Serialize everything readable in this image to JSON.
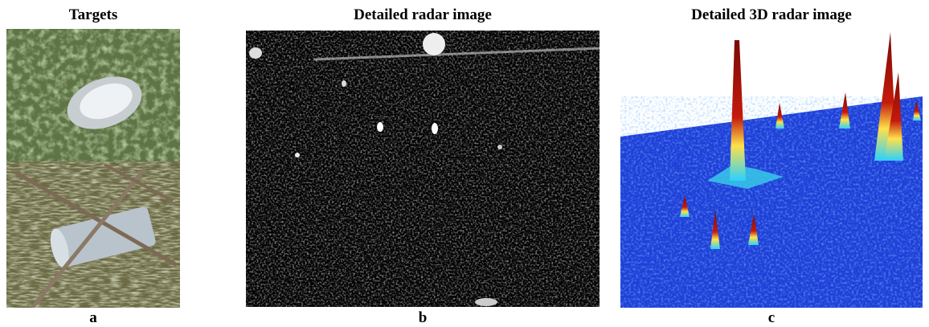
{
  "panels": [
    {
      "title": "Targets",
      "label": "a"
    },
    {
      "title": "Detailed radar image",
      "label": "b"
    },
    {
      "title": "Detailed 3D radar image",
      "label": "c"
    }
  ]
}
